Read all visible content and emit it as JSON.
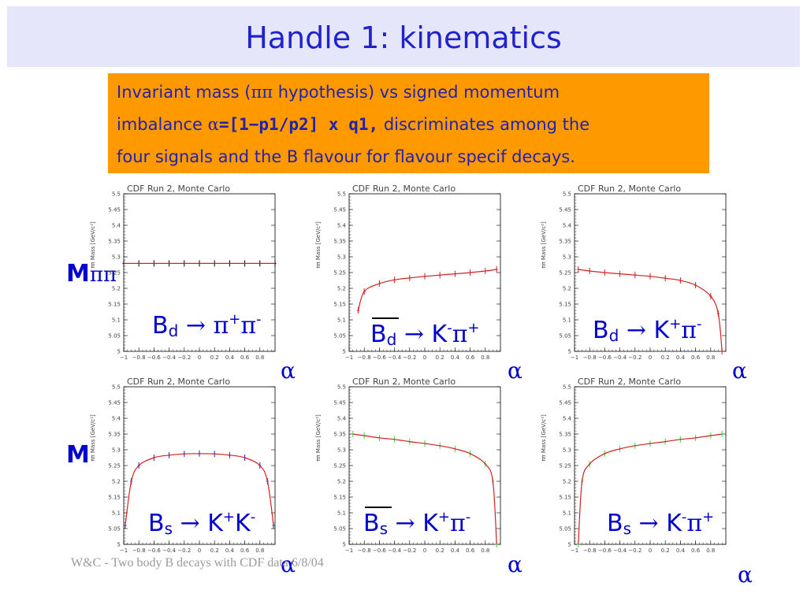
{
  "slide": {
    "title": "Handle 1: kinematics",
    "callout": {
      "line1_a": "Invariant mass (",
      "line1_greek": "ππ",
      "line1_b": " hypothesis) vs signed momentum",
      "line2_a": "imbalance ",
      "line2_greek": "α",
      "line2_mono": "=[1−p1/p2] x q1,",
      "line2_b": " discriminates among the",
      "line3": "four signals and the B flavour for flavour specif decays."
    },
    "row_labels": {
      "top_prefix": "M",
      "top_greek": "ππ",
      "bottom_prefix": "M"
    },
    "footer": "W&C - Two body B decays with CDF data 6/8/04"
  },
  "chart_data": [
    {
      "type": "scatter",
      "panel_title": "CDF Run 2, Monte Carlo",
      "ylabel": "ππ Mass [GeV/c²]",
      "xlabel": "α",
      "xlim": [
        -1,
        1
      ],
      "ylim": [
        5,
        5.5
      ],
      "xticks": [
        "−1",
        "−0.8",
        "−0.6",
        "−0.4",
        "−0.2",
        "0",
        "0.2",
        "0.4",
        "0.6",
        "0.8"
      ],
      "yticks": [
        "5",
        "5.05",
        "5.1",
        "5.15",
        "5.2",
        "5.25",
        "5.3",
        "5.35",
        "5.4",
        "5.45",
        "5.5"
      ],
      "caption": {
        "base": "B",
        "sub": "d",
        "arrow": "→",
        "p1": "π",
        "s1": "+",
        "p2": "π",
        "s2": "-"
      },
      "fit_color": "#d42020",
      "marker_color": "#000000",
      "x": [
        -1.0,
        -0.8,
        -0.6,
        -0.4,
        -0.2,
        0,
        0.2,
        0.4,
        0.6,
        0.8,
        1.0
      ],
      "y": [
        5.279,
        5.279,
        5.279,
        5.279,
        5.279,
        5.279,
        5.279,
        5.279,
        5.279,
        5.279,
        5.279
      ]
    },
    {
      "type": "scatter",
      "panel_title": "CDF Run 2, Monte Carlo",
      "ylabel": "ππ Mass [GeV/c²]",
      "xlabel": "α",
      "xlim": [
        -1,
        1
      ],
      "ylim": [
        5,
        5.5
      ],
      "xticks": [
        "−1",
        "−0.8",
        "−0.6",
        "−0.4",
        "−0.2",
        "0",
        "0.2",
        "0.4",
        "0.6",
        "0.8"
      ],
      "yticks": [
        "5",
        "5.05",
        "5.1",
        "5.15",
        "5.2",
        "5.25",
        "5.3",
        "5.35",
        "5.4",
        "5.45",
        "5.5"
      ],
      "caption": {
        "base": "B",
        "sub": "d",
        "arrow": "→",
        "p1": "K",
        "s1": "-",
        "p2": "π",
        "s2": "+",
        "bar": true
      },
      "fit_color": "#d42020",
      "marker_color": "#d42020",
      "x": [
        -0.88,
        -0.8,
        -0.6,
        -0.4,
        -0.2,
        0,
        0.2,
        0.4,
        0.6,
        0.8,
        0.95
      ],
      "y": [
        5.13,
        5.19,
        5.215,
        5.227,
        5.233,
        5.238,
        5.242,
        5.246,
        5.25,
        5.255,
        5.26
      ]
    },
    {
      "type": "scatter",
      "panel_title": "CDF Run 2, Monte Carlo",
      "ylabel": "ππ Mass [GeV/c²]",
      "xlabel": "α",
      "xlim": [
        -1,
        1
      ],
      "ylim": [
        5,
        5.5
      ],
      "xticks": [
        "−1",
        "−0.8",
        "−0.6",
        "−0.4",
        "−0.2",
        "0",
        "0.2",
        "0.4",
        "0.6",
        "0.8"
      ],
      "yticks": [
        "5",
        "5.05",
        "5.1",
        "5.15",
        "5.2",
        "5.25",
        "5.3",
        "5.35",
        "5.4",
        "5.45",
        "5.5"
      ],
      "caption": {
        "base": "B",
        "sub": "d",
        "arrow": "→",
        "p1": "K",
        "s1": "+",
        "p2": "π",
        "s2": "-"
      },
      "fit_color": "#d42020",
      "marker_color": "#d42020",
      "x": [
        -0.95,
        -0.8,
        -0.6,
        -0.4,
        -0.2,
        0,
        0.2,
        0.4,
        0.6,
        0.8,
        0.9,
        0.95
      ],
      "y": [
        5.26,
        5.255,
        5.25,
        5.246,
        5.242,
        5.238,
        5.232,
        5.225,
        5.21,
        5.175,
        5.12,
        5.0
      ]
    },
    {
      "type": "scatter",
      "panel_title": "CDF Run 2, Monte Carlo",
      "ylabel": "ππ Mass [GeV/c²]",
      "xlabel": "α",
      "xlim": [
        -1,
        1
      ],
      "ylim": [
        5,
        5.5
      ],
      "xticks": [
        "−1",
        "−0.8",
        "−0.6",
        "−0.4",
        "−0.2",
        "0",
        "0.2",
        "0.4",
        "0.6",
        "0.8"
      ],
      "yticks": [
        "5",
        "5.05",
        "5.1",
        "5.15",
        "5.2",
        "5.25",
        "5.3",
        "5.35",
        "5.4",
        "5.45",
        "5.5"
      ],
      "caption": {
        "base": "B",
        "sub": "s",
        "arrow": "→",
        "p1": "K",
        "s1": "+",
        "p2": "K",
        "s2": "-"
      },
      "fit_color": "#d42020",
      "marker_color": "#2222cc",
      "x": [
        -0.98,
        -0.9,
        -0.8,
        -0.6,
        -0.4,
        -0.2,
        0,
        0.2,
        0.4,
        0.6,
        0.8,
        0.9,
        0.98
      ],
      "y": [
        5.06,
        5.2,
        5.25,
        5.275,
        5.283,
        5.287,
        5.288,
        5.287,
        5.283,
        5.275,
        5.25,
        5.2,
        5.06
      ]
    },
    {
      "type": "scatter",
      "panel_title": "CDF Run 2, Monte Carlo",
      "ylabel": "ππ Mass [GeV/c²]",
      "xlabel": "α",
      "xlim": [
        -1,
        1
      ],
      "ylim": [
        5,
        5.5
      ],
      "xticks": [
        "−1",
        "−0.8",
        "−0.6",
        "−0.4",
        "−0.2",
        "0",
        "0.2",
        "0.4",
        "0.6",
        "0.8"
      ],
      "yticks": [
        "5",
        "5.05",
        "5.1",
        "5.15",
        "5.2",
        "5.25",
        "5.3",
        "5.35",
        "5.4",
        "5.45",
        "5.5"
      ],
      "caption": {
        "base": "B",
        "sub": "s",
        "arrow": "→",
        "p1": "K",
        "s1": "+",
        "p2": "π",
        "s2": "-",
        "bar": true
      },
      "fit_color": "#d42020",
      "marker_color": "#33dd33",
      "x": [
        -0.95,
        -0.8,
        -0.6,
        -0.4,
        -0.2,
        0,
        0.2,
        0.4,
        0.6,
        0.8,
        0.9,
        0.95
      ],
      "y": [
        5.35,
        5.345,
        5.338,
        5.333,
        5.326,
        5.32,
        5.313,
        5.303,
        5.288,
        5.255,
        5.2,
        5.0
      ]
    },
    {
      "type": "scatter",
      "panel_title": "CDF Run 2, Monte Carlo",
      "ylabel": "ππ Mass [GeV/c²]",
      "xlabel": "α",
      "xlim": [
        -1,
        1
      ],
      "ylim": [
        5,
        5.5
      ],
      "xticks": [
        "−1",
        "−0.8",
        "−0.6",
        "−0.4",
        "−0.2",
        "0",
        "0.2",
        "0.4",
        "0.6",
        "0.8"
      ],
      "yticks": [
        "5",
        "5.05",
        "5.1",
        "5.15",
        "5.2",
        "5.25",
        "5.3",
        "5.35",
        "5.4",
        "5.45",
        "5.5"
      ],
      "caption": {
        "base": "B",
        "sub": "s",
        "arrow": "→",
        "p1": "K",
        "s1": "-",
        "p2": "π",
        "s2": "+"
      },
      "fit_color": "#d42020",
      "marker_color": "#33dd33",
      "x": [
        -0.95,
        -0.9,
        -0.8,
        -0.6,
        -0.4,
        -0.2,
        0,
        0.2,
        0.4,
        0.6,
        0.8,
        0.95
      ],
      "y": [
        5.0,
        5.2,
        5.255,
        5.288,
        5.303,
        5.313,
        5.32,
        5.326,
        5.333,
        5.338,
        5.345,
        5.35
      ]
    }
  ]
}
